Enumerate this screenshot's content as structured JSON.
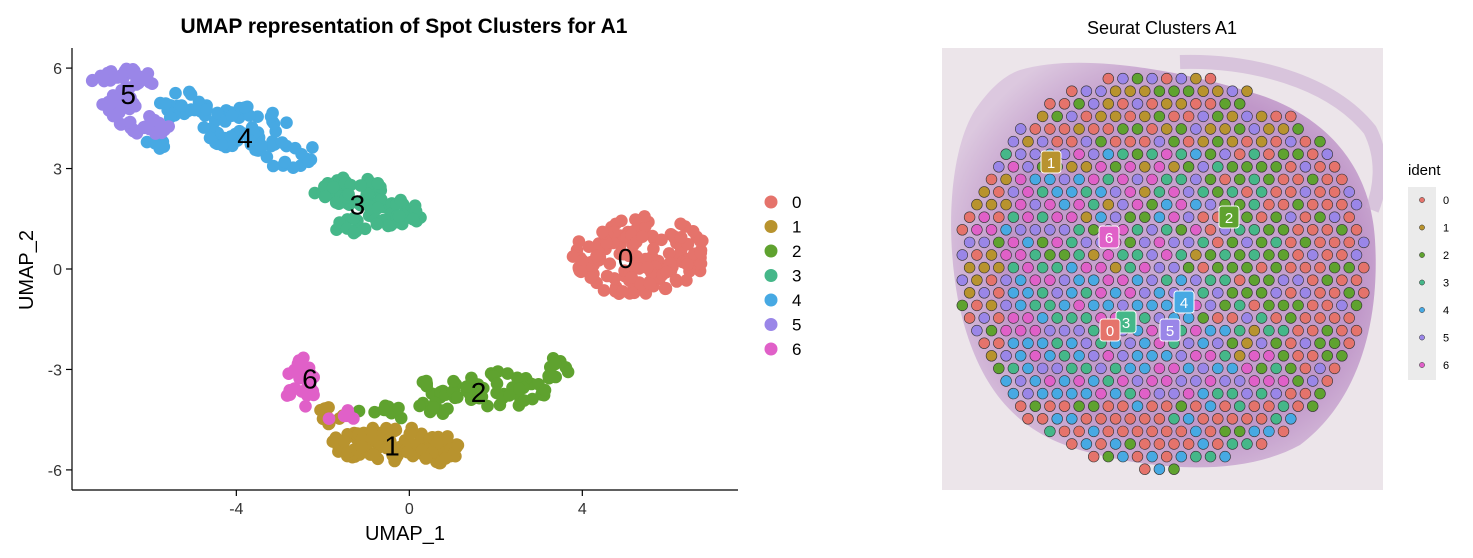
{
  "chart_data": [
    {
      "type": "scatter",
      "title": "UMAP representation of Spot Clusters for A1",
      "xlabel": "UMAP_1",
      "ylabel": "UMAP_2",
      "xlim": [
        -7.8,
        7.6
      ],
      "ylim": [
        -6.6,
        6.6
      ],
      "xticks": [
        -4,
        0,
        4
      ],
      "yticks": [
        -6,
        -3,
        0,
        3,
        6
      ],
      "x_tick_labels": [
        "-4",
        "0",
        "4"
      ],
      "y_tick_labels": [
        "-6",
        "-3",
        "0",
        "3",
        "6"
      ],
      "grid": false,
      "legend_position": "right",
      "legend_entries": [
        "0",
        "1",
        "2",
        "3",
        "4",
        "5",
        "6"
      ],
      "series": [
        {
          "name": "0",
          "color": "#E5736B",
          "label_at": [
            5.0,
            0.3
          ],
          "regions": [
            {
              "cx": 5.3,
              "cy": 0.4,
              "rx": 1.6,
              "ry": 1.2,
              "n": 150
            }
          ]
        },
        {
          "name": "1",
          "color": "#B8932E",
          "label_at": [
            -0.4,
            -5.3
          ],
          "regions": [
            {
              "cx": -0.6,
              "cy": -5.2,
              "rx": 1.2,
              "ry": 0.55,
              "n": 90
            },
            {
              "cx": 0.7,
              "cy": -5.4,
              "rx": 0.45,
              "ry": 0.45,
              "n": 35
            },
            {
              "cx": -1.8,
              "cy": -4.4,
              "rx": 0.35,
              "ry": 0.3,
              "n": 10
            }
          ]
        },
        {
          "name": "2",
          "color": "#5FA22F",
          "label_at": [
            1.6,
            -3.7
          ],
          "regions": [
            {
              "cx": 0.8,
              "cy": -3.8,
              "rx": 0.8,
              "ry": 0.55,
              "n": 30
            },
            {
              "cx": 2.2,
              "cy": -3.6,
              "rx": 1.0,
              "ry": 0.55,
              "n": 40
            },
            {
              "cx": 3.3,
              "cy": -2.9,
              "rx": 0.5,
              "ry": 0.4,
              "n": 12
            },
            {
              "cx": -0.6,
              "cy": -4.3,
              "rx": 0.6,
              "ry": 0.25,
              "n": 10
            }
          ]
        },
        {
          "name": "3",
          "color": "#45B789",
          "label_at": [
            -1.2,
            1.9
          ],
          "regions": [
            {
              "cx": -1.3,
              "cy": 2.3,
              "rx": 0.9,
              "ry": 0.45,
              "n": 45
            },
            {
              "cx": -0.4,
              "cy": 1.7,
              "rx": 0.75,
              "ry": 0.45,
              "n": 30
            },
            {
              "cx": -1.3,
              "cy": 1.3,
              "rx": 0.5,
              "ry": 0.25,
              "n": 12
            }
          ]
        },
        {
          "name": "4",
          "color": "#47A9E3",
          "label_at": [
            -3.8,
            3.9
          ],
          "regions": [
            {
              "cx": -3.8,
              "cy": 4.2,
              "rx": 1.0,
              "ry": 0.7,
              "n": 50
            },
            {
              "cx": -5.2,
              "cy": 4.8,
              "rx": 0.6,
              "ry": 0.5,
              "n": 20
            },
            {
              "cx": -2.8,
              "cy": 3.5,
              "rx": 0.7,
              "ry": 0.5,
              "n": 18
            },
            {
              "cx": -5.8,
              "cy": 3.7,
              "rx": 0.3,
              "ry": 0.2,
              "n": 6
            }
          ]
        },
        {
          "name": "5",
          "color": "#9A86E8",
          "label_at": [
            -6.5,
            5.2
          ],
          "regions": [
            {
              "cx": -6.6,
              "cy": 5.6,
              "rx": 0.75,
              "ry": 0.4,
              "n": 30
            },
            {
              "cx": -6.8,
              "cy": 4.9,
              "rx": 0.5,
              "ry": 0.35,
              "n": 20
            },
            {
              "cx": -6.1,
              "cy": 4.3,
              "rx": 0.6,
              "ry": 0.3,
              "n": 20
            }
          ]
        },
        {
          "name": "6",
          "color": "#E060C8",
          "label_at": [
            -2.3,
            -3.3
          ],
          "regions": [
            {
              "cx": -2.5,
              "cy": -3.5,
              "rx": 0.35,
              "ry": 0.9,
              "n": 22
            },
            {
              "cx": -1.5,
              "cy": -4.4,
              "rx": 0.4,
              "ry": 0.25,
              "n": 6
            }
          ]
        }
      ]
    },
    {
      "type": "scatter",
      "title": "Seurat Clusters A1",
      "legend_title": "ident",
      "legend_position": "right",
      "legend_entries": [
        "0",
        "1",
        "2",
        "3",
        "4",
        "5",
        "6"
      ],
      "grid": false,
      "spot_labels": [
        {
          "text": "1",
          "color": "#B8932E",
          "position": "upper-left"
        },
        {
          "text": "2",
          "color": "#5FA22F",
          "position": "right"
        },
        {
          "text": "6",
          "color": "#E060C8",
          "position": "center-left"
        },
        {
          "text": "4",
          "color": "#47A9E3",
          "position": "center"
        },
        {
          "text": "3",
          "color": "#45B789",
          "position": "lower-center"
        },
        {
          "text": "0",
          "color": "#E5736B",
          "position": "lower-center"
        },
        {
          "text": "5",
          "color": "#9A86E8",
          "position": "lower-center"
        }
      ]
    }
  ]
}
